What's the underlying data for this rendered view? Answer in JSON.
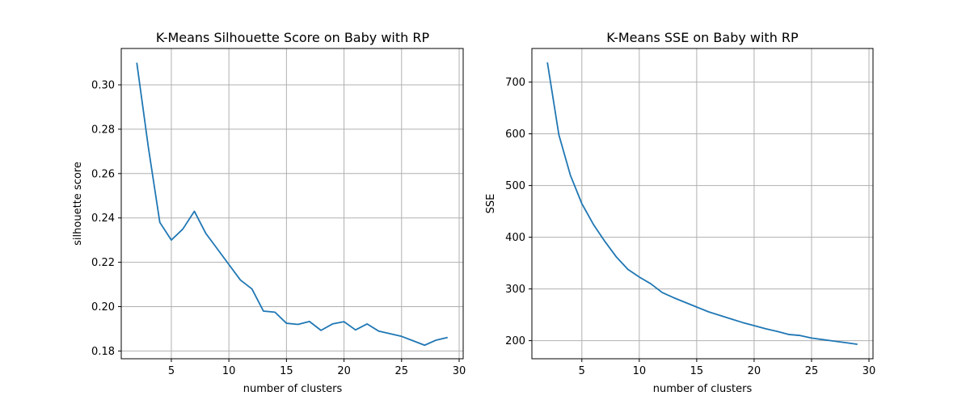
{
  "chart_data": [
    {
      "type": "line",
      "title": "K-Means Silhouette Score on Baby with RP",
      "xlabel": "number of clusters",
      "ylabel": "silhouette score",
      "xlim": [
        0.65,
        30.35
      ],
      "ylim": [
        0.1765,
        0.3164
      ],
      "xticks": [
        5,
        10,
        15,
        20,
        25,
        30
      ],
      "xtick_labels": [
        "5",
        "10",
        "15",
        "20",
        "25",
        "30"
      ],
      "yticks": [
        0.18,
        0.2,
        0.22,
        0.24,
        0.26,
        0.28,
        0.3
      ],
      "ytick_labels": [
        "0.18",
        "0.20",
        "0.22",
        "0.24",
        "0.26",
        "0.28",
        "0.30"
      ],
      "grid": true,
      "color": "#1f77b4",
      "x": [
        2,
        3,
        4,
        5,
        6,
        7,
        8,
        9,
        10,
        11,
        12,
        13,
        14,
        15,
        16,
        17,
        18,
        19,
        20,
        21,
        22,
        23,
        24,
        25,
        26,
        27,
        28,
        29
      ],
      "y": [
        0.31,
        0.272,
        0.238,
        0.23,
        0.235,
        0.243,
        0.233,
        0.226,
        0.219,
        0.212,
        0.208,
        0.198,
        0.1975,
        0.1925,
        0.192,
        0.1933,
        0.1893,
        0.1922,
        0.1932,
        0.1895,
        0.1922,
        0.189,
        0.1878,
        0.1866,
        0.1846,
        0.1826,
        0.1849,
        0.1861
      ]
    },
    {
      "type": "line",
      "title": "K-Means SSE on Baby with RP",
      "xlabel": "number of clusters",
      "ylabel": "SSE",
      "xlim": [
        0.65,
        30.35
      ],
      "ylim": [
        165,
        765
      ],
      "xticks": [
        5,
        10,
        15,
        20,
        25,
        30
      ],
      "xtick_labels": [
        "5",
        "10",
        "15",
        "20",
        "25",
        "30"
      ],
      "yticks": [
        200,
        300,
        400,
        500,
        600,
        700
      ],
      "ytick_labels": [
        "200",
        "300",
        "400",
        "500",
        "600",
        "700"
      ],
      "grid": true,
      "color": "#1f77b4",
      "x": [
        2,
        3,
        4,
        5,
        6,
        7,
        8,
        9,
        10,
        11,
        12,
        13,
        14,
        15,
        16,
        17,
        18,
        19,
        20,
        21,
        22,
        23,
        24,
        25,
        26,
        27,
        28,
        29
      ],
      "y": [
        738,
        598,
        520,
        465,
        425,
        392,
        362,
        338,
        323,
        310,
        293,
        283,
        274,
        265,
        256,
        249,
        242,
        235,
        229,
        223,
        218,
        212,
        210,
        205,
        202,
        199,
        196,
        193
      ]
    }
  ]
}
